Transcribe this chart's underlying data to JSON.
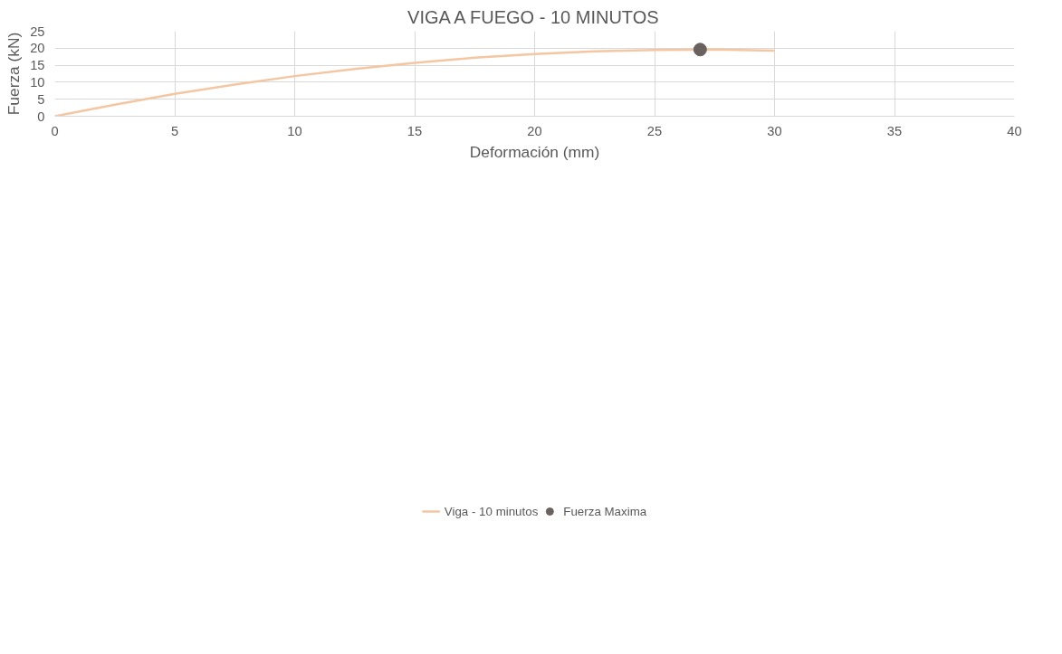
{
  "chart_data": {
    "type": "line",
    "title": "VIGA A FUEGO - 10 MINUTOS",
    "xlabel": "Deformación (mm)",
    "ylabel": "Fuerza (kN)",
    "xlim": [
      0,
      40
    ],
    "xticks": [
      0,
      5,
      10,
      15,
      20,
      25,
      30,
      35,
      40
    ],
    "ylim": [
      0,
      25
    ],
    "yticks": [
      0,
      5,
      10,
      15,
      20,
      25
    ],
    "grid": true,
    "legend": "bottom",
    "series": [
      {
        "name": "Viga - 10 minutos",
        "color": "#f4c6a2",
        "marker": "none",
        "line_style": "solid",
        "x": [
          0,
          2.5,
          5,
          7.5,
          10,
          12.5,
          15,
          17.5,
          20,
          22.5,
          25,
          27.5,
          30
        ],
        "values": [
          0,
          3.4,
          6.6,
          9.3,
          11.8,
          13.9,
          15.7,
          17.2,
          18.3,
          19.1,
          19.5,
          19.6,
          19.3
        ]
      },
      {
        "name": "Fuerza Maxima",
        "type": "scatter",
        "color": "#69625f",
        "marker": "circle",
        "x": [
          26.9
        ],
        "values": [
          19.6
        ]
      }
    ]
  }
}
